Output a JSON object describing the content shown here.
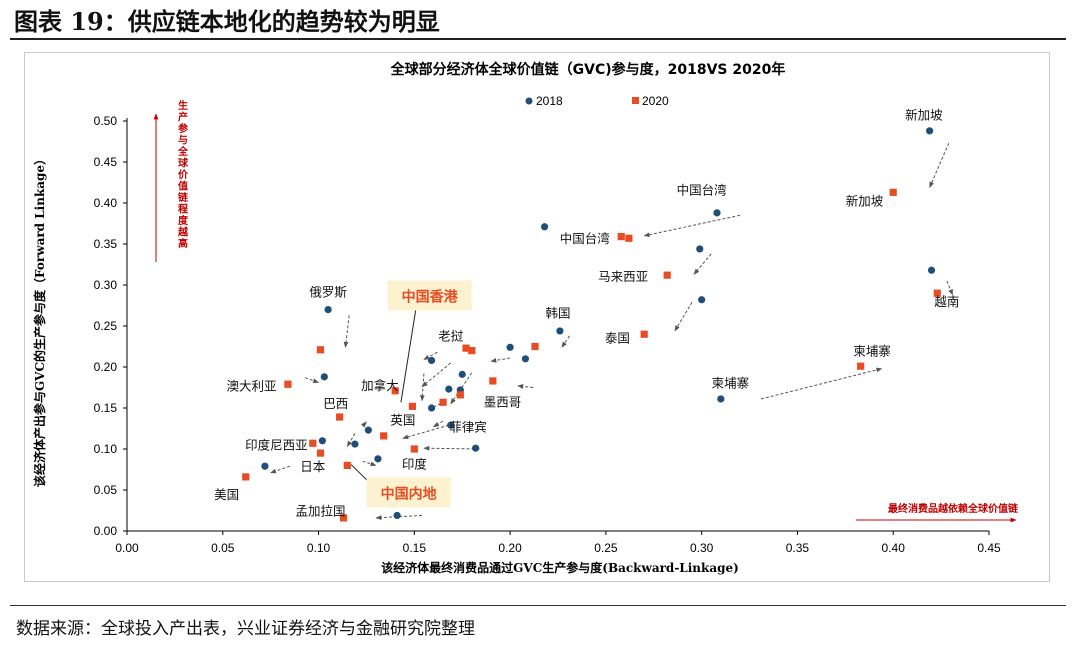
{
  "figure_title": "图表 19：供应链本地化的趋势较为明显",
  "source_note": "数据来源：全球投入产出表，兴业证券经济与金融研究院整理",
  "chart_data": {
    "type": "scatter",
    "title": "全球部分经济体全球价值链（GVC)参与度，2018VS 2020年",
    "xlabel": "该经济体最终消费品通过GVC生产参与度(Backward-Linkage)",
    "ylabel": "该经济体产出参与GVC的生产参与度（Forward Linkage）",
    "xlim": [
      0,
      0.45
    ],
    "ylim": [
      0,
      0.5
    ],
    "x_ticks": [
      "0.00",
      "0.05",
      "0.10",
      "0.15",
      "0.20",
      "0.25",
      "0.30",
      "0.35",
      "0.40",
      "0.45"
    ],
    "y_ticks": [
      "0.00",
      "0.05",
      "0.10",
      "0.15",
      "0.20",
      "0.25",
      "0.30",
      "0.35",
      "0.40",
      "0.45",
      "0.50"
    ],
    "series": [
      {
        "name": "2018",
        "color": "#1f4e79",
        "marker": "circle",
        "points": [
          {
            "x": 0.072,
            "y": 0.079
          },
          {
            "x": 0.103,
            "y": 0.188
          },
          {
            "x": 0.105,
            "y": 0.27
          },
          {
            "x": 0.102,
            "y": 0.11
          },
          {
            "x": 0.119,
            "y": 0.106
          },
          {
            "x": 0.126,
            "y": 0.123
          },
          {
            "x": 0.131,
            "y": 0.088
          },
          {
            "x": 0.141,
            "y": 0.019
          },
          {
            "x": 0.159,
            "y": 0.208
          },
          {
            "x": 0.159,
            "y": 0.15
          },
          {
            "x": 0.168,
            "y": 0.173
          },
          {
            "x": 0.169,
            "y": 0.129
          },
          {
            "x": 0.174,
            "y": 0.172
          },
          {
            "x": 0.175,
            "y": 0.191
          },
          {
            "x": 0.182,
            "y": 0.101
          },
          {
            "x": 0.2,
            "y": 0.224
          },
          {
            "x": 0.208,
            "y": 0.21
          },
          {
            "x": 0.218,
            "y": 0.371
          },
          {
            "x": 0.226,
            "y": 0.244
          },
          {
            "x": 0.299,
            "y": 0.344
          },
          {
            "x": 0.3,
            "y": 0.282
          },
          {
            "x": 0.308,
            "y": 0.388
          },
          {
            "x": 0.31,
            "y": 0.161
          },
          {
            "x": 0.419,
            "y": 0.488
          },
          {
            "x": 0.42,
            "y": 0.318
          }
        ]
      },
      {
        "name": "2020",
        "color": "#e84c22",
        "marker": "square",
        "points": [
          {
            "x": 0.062,
            "y": 0.066
          },
          {
            "x": 0.084,
            "y": 0.179
          },
          {
            "x": 0.097,
            "y": 0.107
          },
          {
            "x": 0.101,
            "y": 0.095
          },
          {
            "x": 0.101,
            "y": 0.221
          },
          {
            "x": 0.111,
            "y": 0.139
          },
          {
            "x": 0.113,
            "y": 0.016
          },
          {
            "x": 0.115,
            "y": 0.08
          },
          {
            "x": 0.134,
            "y": 0.116
          },
          {
            "x": 0.14,
            "y": 0.171
          },
          {
            "x": 0.149,
            "y": 0.152
          },
          {
            "x": 0.15,
            "y": 0.1
          },
          {
            "x": 0.165,
            "y": 0.157
          },
          {
            "x": 0.174,
            "y": 0.166
          },
          {
            "x": 0.177,
            "y": 0.223
          },
          {
            "x": 0.18,
            "y": 0.22
          },
          {
            "x": 0.191,
            "y": 0.183
          },
          {
            "x": 0.213,
            "y": 0.225
          },
          {
            "x": 0.258,
            "y": 0.359
          },
          {
            "x": 0.262,
            "y": 0.357
          },
          {
            "x": 0.27,
            "y": 0.24
          },
          {
            "x": 0.282,
            "y": 0.312
          },
          {
            "x": 0.383,
            "y": 0.201
          },
          {
            "x": 0.4,
            "y": 0.413
          },
          {
            "x": 0.423,
            "y": 0.29
          }
        ]
      }
    ],
    "point_labels": [
      {
        "text": "新加坡",
        "x": 0.416,
        "y": 0.507
      },
      {
        "text": "新加坡",
        "x": 0.385,
        "y": 0.402
      },
      {
        "text": "中国台湾",
        "x": 0.3,
        "y": 0.415
      },
      {
        "text": "中国台湾",
        "x": 0.239,
        "y": 0.356
      },
      {
        "text": "马来西亚",
        "x": 0.259,
        "y": 0.31
      },
      {
        "text": "越南",
        "x": 0.428,
        "y": 0.279
      },
      {
        "text": "俄罗斯",
        "x": 0.105,
        "y": 0.291
      },
      {
        "text": "韩国",
        "x": 0.225,
        "y": 0.265
      },
      {
        "text": "泰国",
        "x": 0.256,
        "y": 0.235
      },
      {
        "text": "老挝",
        "x": 0.169,
        "y": 0.237
      },
      {
        "text": "柬埔寨",
        "x": 0.389,
        "y": 0.219
      },
      {
        "text": "柬埔寨",
        "x": 0.315,
        "y": 0.18
      },
      {
        "text": "澳大利亚",
        "x": 0.065,
        "y": 0.176
      },
      {
        "text": "加拿大",
        "x": 0.132,
        "y": 0.177
      },
      {
        "text": "巴西",
        "x": 0.109,
        "y": 0.155
      },
      {
        "text": "墨西哥",
        "x": 0.196,
        "y": 0.157
      },
      {
        "text": "英国",
        "x": 0.144,
        "y": 0.135
      },
      {
        "text": "菲律宾",
        "x": 0.178,
        "y": 0.126
      },
      {
        "text": "印度尼西亚",
        "x": 0.078,
        "y": 0.104
      },
      {
        "text": "日本",
        "x": 0.097,
        "y": 0.078
      },
      {
        "text": "印度",
        "x": 0.15,
        "y": 0.081
      },
      {
        "text": "美国",
        "x": 0.052,
        "y": 0.044
      },
      {
        "text": "孟加拉国",
        "x": 0.101,
        "y": 0.024
      }
    ],
    "callouts": [
      {
        "text": "中国香港",
        "x": 0.158,
        "y": 0.286,
        "points_to": {
          "x": 0.143,
          "y": 0.157
        }
      },
      {
        "text": "中国内地",
        "x": 0.147,
        "y": 0.046,
        "points_to": {
          "x": 0.117,
          "y": 0.081
        }
      }
    ],
    "arrows": [
      {
        "from": [
          0.429,
          0.473
        ],
        "to": [
          0.419,
          0.419
        ]
      },
      {
        "from": [
          0.32,
          0.385
        ],
        "to": [
          0.27,
          0.36
        ]
      },
      {
        "from": [
          0.305,
          0.338
        ],
        "to": [
          0.296,
          0.313
        ]
      },
      {
        "from": [
          0.428,
          0.305
        ],
        "to": [
          0.431,
          0.288
        ]
      },
      {
        "from": [
          0.116,
          0.263
        ],
        "to": [
          0.114,
          0.224
        ]
      },
      {
        "from": [
          0.231,
          0.238
        ],
        "to": [
          0.227,
          0.224
        ]
      },
      {
        "from": [
          0.295,
          0.279
        ],
        "to": [
          0.286,
          0.244
        ]
      },
      {
        "from": [
          0.162,
          0.218
        ],
        "to": [
          0.155,
          0.209
        ]
      },
      {
        "from": [
          0.2,
          0.211
        ],
        "to": [
          0.19,
          0.207
        ]
      },
      {
        "from": [
          0.331,
          0.161
        ],
        "to": [
          0.394,
          0.198
        ]
      },
      {
        "from": [
          0.093,
          0.187
        ],
        "to": [
          0.1,
          0.181
        ]
      },
      {
        "from": [
          0.169,
          0.205
        ],
        "to": [
          0.154,
          0.176
        ]
      },
      {
        "from": [
          0.155,
          0.192
        ],
        "to": [
          0.154,
          0.159
        ]
      },
      {
        "from": [
          0.16,
          0.151
        ],
        "to": [
          0.166,
          0.158
        ]
      },
      {
        "from": [
          0.212,
          0.175
        ],
        "to": [
          0.204,
          0.177
        ]
      },
      {
        "from": [
          0.18,
          0.193
        ],
        "to": [
          0.169,
          0.155
        ]
      },
      {
        "from": [
          0.165,
          0.134
        ],
        "to": [
          0.16,
          0.127
        ]
      },
      {
        "from": [
          0.168,
          0.129
        ],
        "to": [
          0.144,
          0.113
        ]
      },
      {
        "from": [
          0.119,
          0.119
        ],
        "to": [
          0.115,
          0.103
        ]
      },
      {
        "from": [
          0.123,
          0.128
        ],
        "to": [
          0.125,
          0.133
        ]
      },
      {
        "from": [
          0.184,
          0.1
        ],
        "to": [
          0.155,
          0.101
        ]
      },
      {
        "from": [
          0.123,
          0.085
        ],
        "to": [
          0.13,
          0.08
        ]
      },
      {
        "from": [
          0.085,
          0.079
        ],
        "to": [
          0.075,
          0.071
        ]
      },
      {
        "from": [
          0.154,
          0.019
        ],
        "to": [
          0.13,
          0.016
        ]
      }
    ],
    "y_annotation": "生产参与全球价值链程度越高",
    "x_annotation": "最终消费品越依赖全球价值链"
  }
}
